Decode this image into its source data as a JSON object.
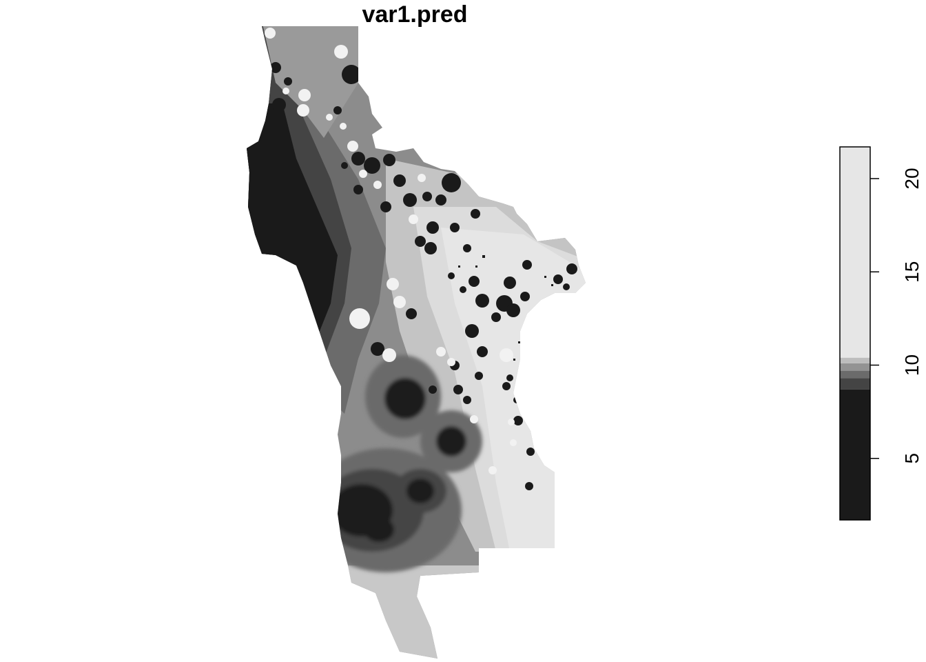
{
  "title": "var1.pred",
  "legend": {
    "min": 1.7,
    "max": 21.7,
    "ticks": [
      {
        "value": 5,
        "label": "5"
      },
      {
        "value": 10,
        "label": "10"
      },
      {
        "value": 15,
        "label": "15"
      },
      {
        "value": 20,
        "label": "20"
      }
    ],
    "bands": [
      {
        "from": 1.7,
        "to": 8.7,
        "color": "#1a1a1a"
      },
      {
        "from": 8.7,
        "to": 9.3,
        "color": "#444444"
      },
      {
        "from": 9.3,
        "to": 9.7,
        "color": "#6b6b6b"
      },
      {
        "from": 9.7,
        "to": 10.1,
        "color": "#939393"
      },
      {
        "from": 10.1,
        "to": 10.4,
        "color": "#bdbdbd"
      },
      {
        "from": 10.4,
        "to": 21.7,
        "color": "#e6e6e6"
      }
    ]
  },
  "colors": {
    "background": "#ffffff",
    "darkest": "#1a1a1a",
    "lightest": "#e6e6e6"
  }
}
